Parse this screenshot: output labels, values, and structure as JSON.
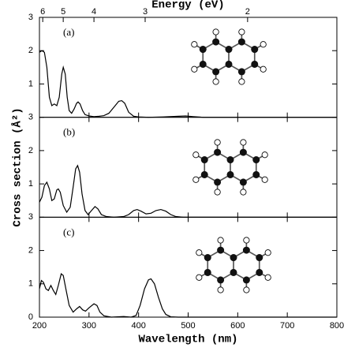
{
  "chart_data": [
    {
      "type": "line",
      "label": "(a)",
      "x2label": "Energy (eV)",
      "x2ticks": [
        6,
        5,
        4,
        3,
        2
      ],
      "x": [
        200,
        205,
        210,
        215,
        220,
        225,
        230,
        235,
        240,
        245,
        248,
        252,
        256,
        260,
        265,
        270,
        275,
        278,
        282,
        287,
        292,
        300,
        310,
        320,
        330,
        340,
        350,
        360,
        366,
        372,
        380,
        390,
        400,
        420,
        450,
        480,
        495,
        510,
        530,
        800
      ],
      "values": [
        1.95,
        2.0,
        1.95,
        1.5,
        0.6,
        0.35,
        0.4,
        0.35,
        0.6,
        1.3,
        1.5,
        1.3,
        0.6,
        0.2,
        0.12,
        0.25,
        0.42,
        0.46,
        0.4,
        0.2,
        0.08,
        0.04,
        0.02,
        0.03,
        0.05,
        0.12,
        0.3,
        0.48,
        0.5,
        0.42,
        0.15,
        0.03,
        0.01,
        0,
        0.01,
        0.03,
        0.04,
        0.02,
        0,
        0
      ],
      "color": "#000000",
      "xlim": [
        200,
        800
      ],
      "ylim": [
        0,
        3
      ],
      "yticks": [
        1,
        2,
        3
      ]
    },
    {
      "type": "line",
      "label": "(b)",
      "ylabel": "Cross section (Å²)",
      "x": [
        200,
        205,
        210,
        215,
        220,
        225,
        230,
        235,
        238,
        242,
        248,
        255,
        262,
        268,
        273,
        277,
        281,
        286,
        292,
        298,
        305,
        312,
        318,
        325,
        335,
        350,
        370,
        380,
        390,
        397,
        405,
        415,
        425,
        435,
        445,
        455,
        465,
        475,
        490,
        800
      ],
      "values": [
        0.45,
        0.6,
        0.95,
        1.05,
        0.85,
        0.5,
        0.55,
        0.82,
        0.85,
        0.75,
        0.35,
        0.15,
        0.3,
        0.9,
        1.45,
        1.55,
        1.35,
        0.7,
        0.2,
        0.08,
        0.2,
        0.32,
        0.25,
        0.08,
        0.02,
        0,
        0.02,
        0.08,
        0.2,
        0.23,
        0.18,
        0.1,
        0.12,
        0.2,
        0.23,
        0.18,
        0.08,
        0.02,
        0,
        0
      ],
      "color": "#000000",
      "xlim": [
        200,
        800
      ],
      "ylim": [
        0,
        3
      ],
      "yticks": [
        1,
        2,
        3
      ]
    },
    {
      "type": "line",
      "label": "(c)",
      "xlabel": "Wavelength (nm)",
      "xticks": [
        200,
        300,
        400,
        500,
        600,
        700,
        800
      ],
      "x": [
        200,
        204,
        208,
        213,
        218,
        223,
        228,
        233,
        238,
        244,
        248,
        254,
        260,
        268,
        275,
        281,
        287,
        293,
        300,
        310,
        316,
        322,
        330,
        345,
        370,
        385,
        395,
        403,
        412,
        420,
        425,
        432,
        440,
        448,
        455,
        465,
        480,
        800
      ],
      "values": [
        0.85,
        1.1,
        1.05,
        0.85,
        0.8,
        0.95,
        0.8,
        0.68,
        0.95,
        1.3,
        1.25,
        0.8,
        0.35,
        0.15,
        0.25,
        0.32,
        0.22,
        0.18,
        0.28,
        0.4,
        0.35,
        0.15,
        0.04,
        0,
        0.02,
        0,
        0.05,
        0.35,
        0.85,
        1.12,
        1.15,
        1.0,
        0.6,
        0.25,
        0.08,
        0.01,
        0,
        0
      ],
      "color": "#000000",
      "xlim": [
        200,
        800
      ],
      "ylim": [
        0,
        3
      ],
      "yticks": [
        0,
        1,
        2,
        3
      ]
    }
  ]
}
